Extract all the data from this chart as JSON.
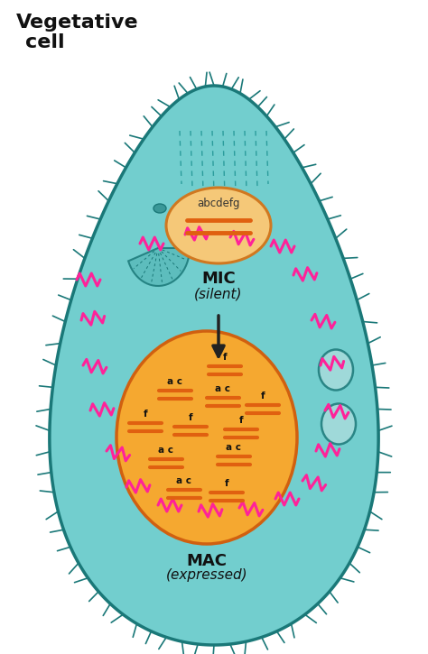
{
  "title_line1": "Vegetative",
  "title_line2": "cell",
  "cell_color": "#72CECE",
  "cell_outline_color": "#1A7878",
  "mic_fill_top": "#F5C878",
  "mic_fill_bottom": "#F0A030",
  "mic_outline_color": "#D07820",
  "mac_fill": "#F5A830",
  "mac_outline_color": "#D06010",
  "background_color": "#FFFFFF",
  "chrom_color": "#E06010",
  "zigzag_color": "#FF2299",
  "cilia_color": "#1A7878",
  "vacuole_color": "#A8DCDC",
  "vacuole_outline": "#1A7878",
  "mic_label": "MIC",
  "mic_sublabel": "(silent)",
  "mac_label": "MAC",
  "mac_sublabel": "(expressed)",
  "mic_genes": "abcdefg",
  "arrow_color": "#222222",
  "mouth_color": "#5ABABA",
  "mouth_outline": "#1A7878",
  "dash_color": "#1A9090"
}
